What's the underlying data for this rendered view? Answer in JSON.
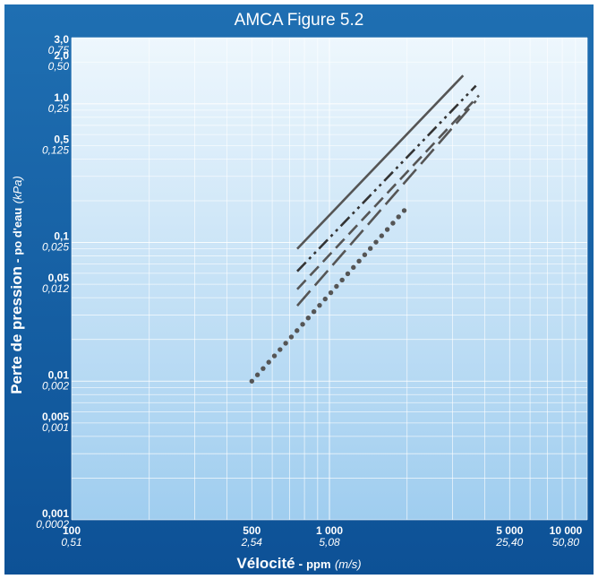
{
  "chart_data": {
    "type": "line",
    "title": "AMCA Figure 5.2",
    "xlabel": {
      "main": "Vélocité",
      "sep": " - ",
      "unit": "ppm",
      "alt_unit": "(m/s)"
    },
    "ylabel": {
      "main": "Perte de pression",
      "sep": " - ",
      "unit": "po d'eau",
      "alt_unit": "(kPa)"
    },
    "x_scale": "log",
    "y_scale": "log",
    "xlim": [
      100,
      10000
    ],
    "ylim": [
      0.001,
      3.0
    ],
    "grid": true,
    "x_ticks": [
      {
        "value": 100,
        "label": "100",
        "sub": "0,51"
      },
      {
        "value": 500,
        "label": "500",
        "sub": "2,54"
      },
      {
        "value": 1000,
        "label": "1 000",
        "sub": "5,08"
      },
      {
        "value": 5000,
        "label": "5 000",
        "sub": "25,40"
      },
      {
        "value": 10000,
        "label": "10 000",
        "sub": "50,80"
      }
    ],
    "y_ticks": [
      {
        "value": 3.0,
        "label": "3,0",
        "sub": "0,75"
      },
      {
        "value": 2.0,
        "label": "2,0",
        "sub": "0,50"
      },
      {
        "value": 1.0,
        "label": "1,0",
        "sub": "0,25"
      },
      {
        "value": 0.5,
        "label": "0,5",
        "sub": "0,125"
      },
      {
        "value": 0.1,
        "label": "0,1",
        "sub": "0,025"
      },
      {
        "value": 0.05,
        "label": "0,05",
        "sub": "0,012"
      },
      {
        "value": 0.01,
        "label": "0,01",
        "sub": "0,002"
      },
      {
        "value": 0.005,
        "label": "0,005",
        "sub": "0,001"
      },
      {
        "value": 0.001,
        "label": "0,001",
        "sub": "0,0002"
      }
    ],
    "series": [
      {
        "style": "solid",
        "color": "#555555",
        "x": [
          750,
          3300
        ],
        "y": [
          0.09,
          1.6
        ]
      },
      {
        "style": "dashdotdot",
        "color": "#333333",
        "x": [
          750,
          3700
        ],
        "y": [
          0.062,
          1.35
        ]
      },
      {
        "style": "dashed",
        "color": "#555555",
        "x": [
          750,
          3800
        ],
        "y": [
          0.046,
          1.15
        ]
      },
      {
        "style": "longdash",
        "color": "#555555",
        "x": [
          750,
          3700
        ],
        "y": [
          0.035,
          1.05
        ]
      },
      {
        "style": "dotted",
        "color": "#555555",
        "x": [
          500,
          1950
        ],
        "y": [
          0.01,
          0.17
        ]
      }
    ]
  }
}
